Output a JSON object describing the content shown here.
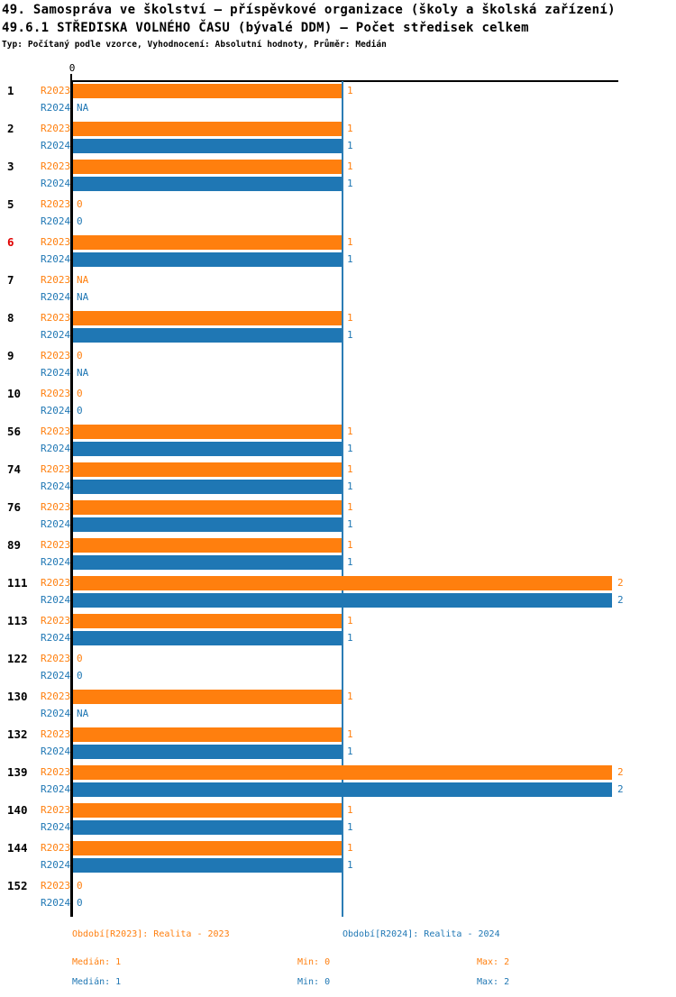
{
  "header": {
    "title_line1": "49. Samospráva ve školství – příspěvkové organizace (školy a školská zařízení)",
    "title_line2": "49.6.1 STŘEDISKA VOLNÉHO ČASU (bývalé DDM) – Počet středisek celkem",
    "subtitle": "Typ: Počítaný podle vzorce, Vyhodnocení: Absolutní hodnoty, Průměr: Medián"
  },
  "colors": {
    "orange": "#ff7f0e",
    "blue": "#1f77b4",
    "red": "#e00000",
    "axis": "#000000",
    "median_line": "#2b7cb5"
  },
  "chart_data": {
    "type": "bar",
    "orientation": "horizontal",
    "title": "49.6.1 STŘEDISKA VOLNÉHO ČASU (bývalé DDM) – Počet středisek celkem",
    "x_axis": {
      "tick_label": "0",
      "min": 0,
      "max": 2,
      "median_reference_line": 1,
      "grid": false
    },
    "categories": [
      "1",
      "2",
      "3",
      "5",
      "6",
      "7",
      "8",
      "9",
      "10",
      "56",
      "74",
      "76",
      "89",
      "111",
      "113",
      "122",
      "130",
      "132",
      "139",
      "140",
      "144",
      "152"
    ],
    "highlighted_category": "6",
    "series": [
      {
        "name": "R2023",
        "values": [
          "1",
          "1",
          "1",
          "0",
          "1",
          "NA",
          "1",
          "0",
          "0",
          "1",
          "1",
          "1",
          "1",
          "2",
          "1",
          "0",
          "1",
          "1",
          "2",
          "1",
          "1",
          "0"
        ]
      },
      {
        "name": "R2024",
        "values": [
          "NA",
          "1",
          "1",
          "0",
          "1",
          "NA",
          "1",
          "NA",
          "0",
          "1",
          "1",
          "1",
          "1",
          "2",
          "1",
          "0",
          "NA",
          "1",
          "2",
          "1",
          "1",
          "0"
        ]
      }
    ],
    "legend_position": "bottom"
  },
  "footer": {
    "legend_r2023": "Období[R2023]: Realita - 2023",
    "legend_r2024": "Období[R2024]: Realita - 2024",
    "stats_r2023": {
      "median": "Medián: 1",
      "min": "Min: 0",
      "max": "Max: 2"
    },
    "stats_r2024": {
      "median": "Medián: 1",
      "min": "Min: 0",
      "max": "Max: 2"
    }
  }
}
